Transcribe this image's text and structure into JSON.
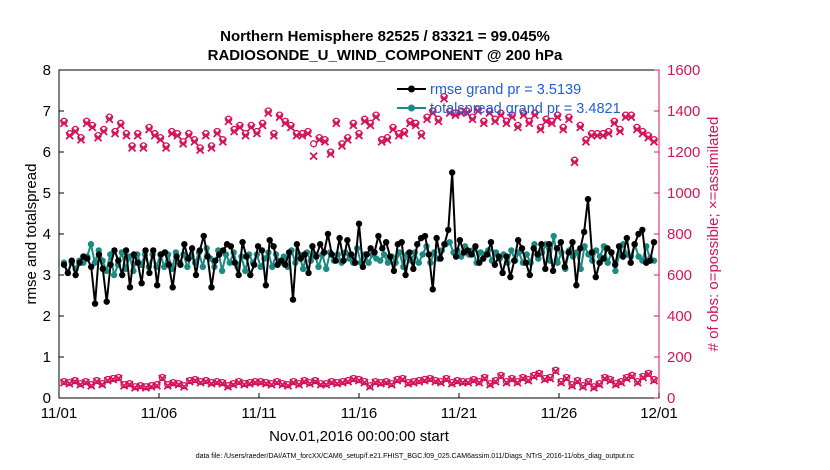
{
  "colors": {
    "rmse": "#000000",
    "totalspread": "#1a8a84",
    "obs": "#d4145a",
    "legend_text": "#1f5fd6"
  },
  "chart_data": {
    "type": "line",
    "title": "Northern Hemisphere 82525 / 83321 = 99.045%",
    "subtitle": "RADIOSONDE_U_WIND_COMPONENT @ 200 hPa",
    "xlabel": "Nov.01,2016 00:00:00 start",
    "ylabel": "rmse and totalspread",
    "ylabel_right": "# of obs: o=possible; ×=assimilated",
    "xlim": [
      0,
      30
    ],
    "ylim": [
      0,
      8
    ],
    "ylim_right": [
      0,
      1600
    ],
    "xticks": [
      0,
      5,
      10,
      15,
      20,
      25,
      30
    ],
    "xtick_labels": [
      "11/01",
      "11/06",
      "11/11",
      "11/16",
      "11/21",
      "11/26",
      "12/01"
    ],
    "yticks": [
      0,
      1,
      2,
      3,
      4,
      5,
      6,
      7,
      8
    ],
    "ytick_labels": [
      "0",
      "1",
      "2",
      "3",
      "4",
      "5",
      "6",
      "7",
      "8"
    ],
    "yticks_right": [
      0,
      200,
      400,
      600,
      800,
      1000,
      1200,
      1400,
      1600
    ],
    "ytick_labels_right": [
      "0",
      "200",
      "400",
      "600",
      "800",
      "1000",
      "1200",
      "1400",
      "1600"
    ],
    "legend": [
      {
        "name": "rmse grand pr = 3.5139"
      },
      {
        "name": "totalspread grand pr = 3.4821"
      }
    ],
    "series": [
      {
        "name": "rmse",
        "axis": "left",
        "values": [
          3.25,
          3.05,
          3.35,
          3.0,
          3.3,
          3.45,
          3.4,
          3.2,
          2.3,
          3.5,
          3.15,
          2.35,
          3.25,
          3.6,
          3.35,
          3.0,
          3.6,
          2.7,
          3.5,
          3.3,
          2.8,
          3.6,
          3.05,
          3.6,
          2.75,
          3.5,
          3.55,
          3.25,
          2.7,
          3.45,
          3.25,
          3.75,
          3.4,
          3.65,
          3.0,
          3.6,
          3.95,
          3.45,
          2.7,
          3.35,
          3.5,
          3.6,
          3.75,
          3.7,
          3.3,
          3.0,
          3.8,
          3.45,
          3.0,
          3.25,
          3.7,
          3.6,
          2.75,
          3.85,
          3.7,
          3.25,
          3.35,
          3.25,
          3.55,
          2.4,
          3.75,
          3.4,
          3.5,
          3.05,
          3.7,
          3.45,
          3.75,
          3.55,
          4.0,
          3.5,
          3.35,
          3.9,
          3.35,
          3.85,
          3.5,
          3.3,
          4.25,
          3.2,
          3.5,
          3.65,
          3.55,
          3.95,
          3.65,
          3.8,
          3.45,
          3.1,
          3.75,
          3.8,
          3.0,
          3.55,
          3.15,
          3.75,
          3.9,
          3.95,
          3.5,
          2.65,
          3.9,
          3.4,
          3.75,
          4.1,
          5.5,
          3.45,
          3.85,
          3.55,
          3.6,
          3.5,
          3.7,
          3.3,
          3.4,
          3.5,
          3.8,
          3.25,
          3.45,
          3.05,
          3.45,
          2.95,
          3.35,
          3.85,
          3.65,
          3.3,
          3.0,
          3.65,
          3.5,
          3.75,
          3.15,
          3.75,
          3.1,
          3.65,
          3.8,
          3.2,
          3.55,
          3.8,
          2.75,
          3.65,
          4.05,
          4.85,
          3.55,
          2.95,
          3.3,
          3.4,
          3.65,
          3.55,
          3.25,
          3.7,
          3.45,
          3.9,
          3.3,
          3.75,
          4.0,
          4.1,
          3.3,
          3.35,
          3.8
        ]
      },
      {
        "name": "totalspread",
        "axis": "left",
        "values": [
          3.3,
          3.05,
          3.3,
          3.15,
          3.35,
          3.3,
          3.45,
          3.75,
          3.3,
          3.6,
          3.35,
          3.1,
          3.5,
          3.0,
          3.25,
          3.55,
          3.15,
          3.45,
          3.1,
          3.5,
          3.25,
          3.5,
          3.2,
          3.5,
          3.2,
          3.5,
          3.2,
          3.5,
          3.15,
          3.55,
          3.3,
          3.5,
          3.2,
          3.45,
          3.3,
          3.55,
          3.2,
          3.65,
          3.4,
          3.2,
          3.6,
          3.1,
          3.5,
          3.3,
          3.55,
          3.2,
          3.45,
          3.1,
          3.5,
          3.3,
          3.5,
          3.2,
          3.4,
          3.55,
          3.2,
          3.5,
          3.3,
          3.45,
          3.2,
          3.6,
          3.3,
          3.5,
          3.15,
          3.55,
          3.35,
          3.5,
          3.2,
          3.5,
          3.15,
          3.55,
          3.35,
          3.5,
          3.3,
          3.55,
          3.4,
          3.3,
          3.65,
          3.3,
          3.5,
          3.3,
          3.5,
          3.4,
          3.35,
          3.5,
          3.3,
          3.45,
          3.3,
          3.55,
          3.2,
          3.5,
          3.35,
          3.55,
          3.3,
          3.5,
          3.7,
          3.3,
          3.55,
          3.4,
          3.6,
          3.75,
          3.8,
          3.55,
          3.6,
          3.45,
          3.7,
          3.5,
          3.6,
          3.3,
          3.55,
          3.5,
          3.6,
          3.35,
          3.55,
          3.4,
          3.5,
          3.3,
          3.6,
          3.35,
          3.55,
          3.3,
          3.5,
          3.3,
          3.75,
          3.4,
          3.55,
          3.75,
          3.35,
          3.95,
          3.3,
          3.55,
          3.15,
          3.6,
          3.45,
          3.55,
          3.15,
          3.7,
          3.5,
          3.35,
          3.6,
          3.45,
          3.7,
          3.3,
          3.55,
          3.1,
          3.5,
          3.75,
          3.5,
          3.45,
          3.75,
          3.45,
          3.35,
          3.7,
          3.4,
          3.35
        ]
      },
      {
        "name": "obs_possible",
        "axis": "right",
        "marker": "circle",
        "values": [
          1350,
          1290,
          1310,
          1270,
          1350,
          1330,
          1280,
          1310,
          1370,
          1300,
          1340,
          1290,
          1230,
          1290,
          1230,
          1320,
          1290,
          1270,
          1230,
          1300,
          1290,
          1250,
          1290,
          1260,
          1220,
          1290,
          1230,
          1300,
          1260,
          1360,
          1310,
          1330,
          1290,
          1330,
          1300,
          1340,
          1400,
          1290,
          1380,
          1350,
          1330,
          1290,
          1290,
          1300,
          1240,
          1270,
          1260,
          1200,
          1350,
          1240,
          1270,
          1340,
          1290,
          1360,
          1340,
          1380,
          1260,
          1270,
          1320,
          1290,
          1300,
          1350,
          1340,
          1290,
          1370,
          1400,
          1360,
          1470,
          1400,
          1390,
          1400,
          1400,
          1370,
          1410,
          1350,
          1400,
          1360,
          1390,
          1350,
          1380,
          1330,
          1390,
          1350,
          1390,
          1320,
          1360,
          1350,
          1380,
          1320,
          1370,
          1160,
          1330,
          1260,
          1290,
          1290,
          1290,
          1300,
          1350,
          1310,
          1380,
          1380,
          1320,
          1300,
          1280,
          1260
        ]
      },
      {
        "name": "obs_assimilated",
        "axis": "right",
        "marker": "x",
        "values": [
          1340,
          1280,
          1300,
          1260,
          1340,
          1320,
          1270,
          1300,
          1360,
          1290,
          1330,
          1280,
          1220,
          1280,
          1220,
          1310,
          1280,
          1260,
          1220,
          1290,
          1280,
          1240,
          1280,
          1250,
          1210,
          1280,
          1220,
          1290,
          1250,
          1350,
          1300,
          1320,
          1280,
          1320,
          1290,
          1330,
          1390,
          1280,
          1370,
          1340,
          1320,
          1280,
          1280,
          1290,
          1180,
          1260,
          1250,
          1190,
          1340,
          1230,
          1260,
          1330,
          1280,
          1350,
          1330,
          1370,
          1250,
          1260,
          1310,
          1280,
          1290,
          1340,
          1330,
          1280,
          1360,
          1390,
          1350,
          1460,
          1390,
          1380,
          1390,
          1390,
          1360,
          1400,
          1340,
          1390,
          1350,
          1380,
          1340,
          1370,
          1320,
          1380,
          1340,
          1380,
          1310,
          1350,
          1340,
          1370,
          1310,
          1360,
          1150,
          1320,
          1250,
          1280,
          1280,
          1280,
          1290,
          1340,
          1300,
          1370,
          1370,
          1310,
          1290,
          1270,
          1250
        ]
      },
      {
        "name": "obs_possible_low",
        "axis": "right",
        "marker": "circle",
        "values": [
          80,
          75,
          85,
          70,
          80,
          65,
          85,
          70,
          90,
          95,
          100,
          65,
          70,
          55,
          60,
          55,
          60,
          65,
          100,
          65,
          75,
          70,
          60,
          85,
          90,
          80,
          85,
          75,
          80,
          75,
          60,
          70,
          80,
          70,
          75,
          80,
          80,
          75,
          70,
          80,
          70,
          65,
          80,
          70,
          85,
          75,
          85,
          70,
          70,
          80,
          75,
          80,
          85,
          95,
          90,
          80,
          60,
          80,
          75,
          80,
          70,
          90,
          95,
          75,
          80,
          85,
          90,
          95,
          85,
          80,
          95,
          75,
          85,
          80,
          80,
          90,
          80,
          100,
          70,
          85,
          110,
          80,
          95,
          80,
          100,
          90,
          110,
          120,
          95,
          100,
          135,
          80,
          100,
          65,
          85,
          60,
          80,
          55,
          70,
          100,
          90,
          70,
          80,
          100,
          110,
          80,
          105,
          120,
          90
        ]
      },
      {
        "name": "obs_assimilated_low",
        "axis": "right",
        "marker": "x",
        "values": [
          75,
          70,
          80,
          65,
          75,
          60,
          80,
          65,
          85,
          90,
          95,
          60,
          65,
          50,
          55,
          50,
          55,
          60,
          95,
          60,
          70,
          65,
          55,
          80,
          85,
          75,
          80,
          70,
          75,
          70,
          55,
          65,
          75,
          65,
          70,
          75,
          75,
          70,
          65,
          75,
          65,
          60,
          75,
          65,
          80,
          70,
          80,
          65,
          65,
          75,
          70,
          75,
          80,
          90,
          85,
          75,
          55,
          75,
          70,
          75,
          65,
          85,
          90,
          70,
          75,
          80,
          85,
          90,
          80,
          75,
          90,
          70,
          80,
          75,
          75,
          85,
          75,
          95,
          65,
          80,
          105,
          75,
          90,
          75,
          95,
          85,
          105,
          115,
          90,
          95,
          130,
          75,
          95,
          60,
          80,
          55,
          75,
          50,
          65,
          95,
          85,
          65,
          75,
          95,
          105,
          75,
          100,
          115,
          85
        ]
      }
    ]
  },
  "footnote": "data file: /Users/raeder/DAI/ATM_forcXX/CAM6_setup/f.e21.FHIST_BGC.f09_025.CAM6assim.011/Diags_NTrS_2016-11/obs_diag_output.nc"
}
